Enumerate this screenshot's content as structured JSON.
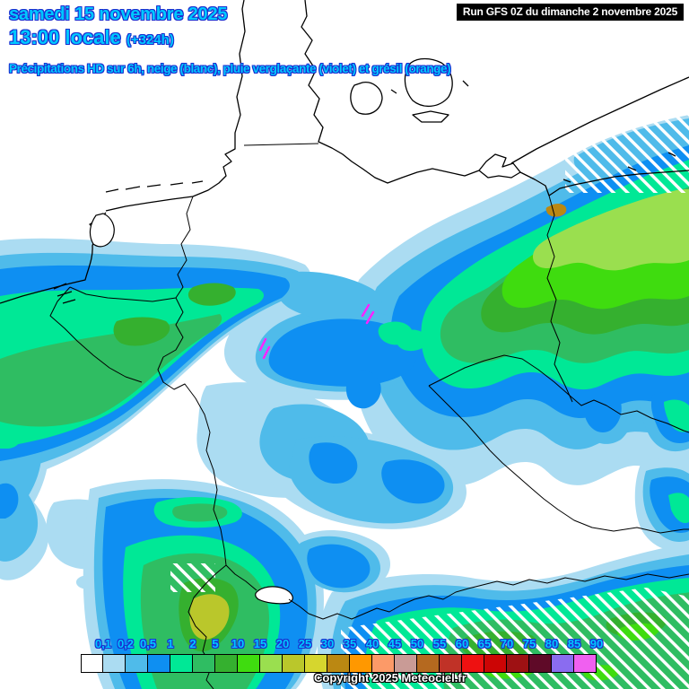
{
  "header": {
    "date": "samedi 15 novembre 2025",
    "time": "13:00 locale",
    "offset": "(+324h)",
    "subtitle": "Précipitations HD sur 6h, neige (blanc), pluie verglaçante (violet) et grésil (orange)",
    "run": "Run GFS 0Z du dimanche 2 novembre 2025"
  },
  "footer": {
    "copyright": "Copyright 2025 Meteociel.fr"
  },
  "colors": {
    "title_text": "#00c8ff",
    "title_outline": "#1b2fd0",
    "run_box_bg": "#000000",
    "run_box_text": "#ffffff",
    "freezing_rain_marker": "#ff22ff",
    "snow_hatch": "#ffffff"
  },
  "legend": {
    "labels": [
      "0,1",
      "0,2",
      "0,5",
      "1",
      "2",
      "5",
      "10",
      "15",
      "20",
      "25",
      "30",
      "35",
      "40",
      "45",
      "50",
      "55",
      "60",
      "65",
      "70",
      "75",
      "80",
      "85",
      "90"
    ],
    "colors": [
      "#ffffff",
      "#abdcf2",
      "#4fbbea",
      "#0e8ff2",
      "#00e896",
      "#2fbd62",
      "#35b02f",
      "#3fdc0f",
      "#9adf4f",
      "#bac72b",
      "#d6d62e",
      "#bb8812",
      "#ff9800",
      "#fc9a68",
      "#c99b96",
      "#b5691f",
      "#c03227",
      "#ee1111",
      "#cc0505",
      "#9e1113",
      "#5f0a28",
      "#8a6cf0",
      "#f060f0"
    ]
  }
}
